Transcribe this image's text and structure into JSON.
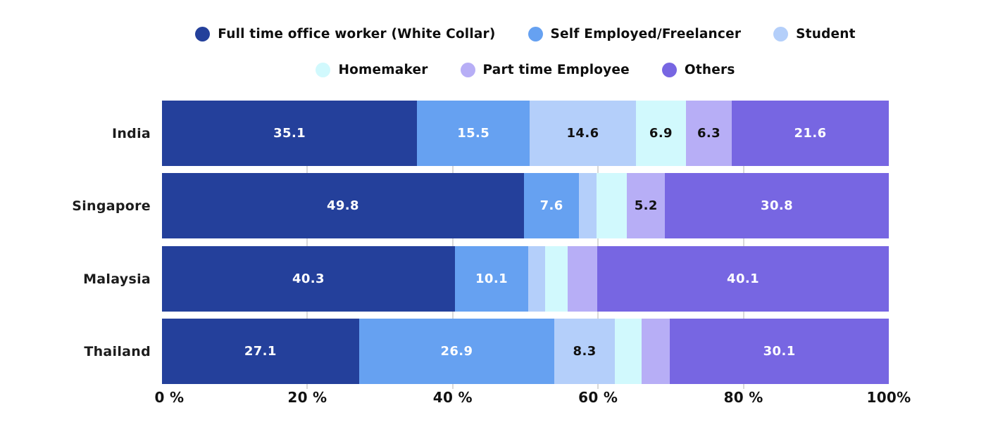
{
  "chart_data": {
    "type": "bar",
    "orientation": "horizontal",
    "stacked": true,
    "unit": "%",
    "title": "",
    "xlabel": "",
    "ylabel": "",
    "xlim": [
      0,
      100
    ],
    "grid": true,
    "gridlines_at": [
      20,
      40,
      60,
      80
    ],
    "label_min_value": 5,
    "legend_position": "top",
    "legend_rows": [
      [
        0,
        1,
        2
      ],
      [
        3,
        4,
        5
      ]
    ],
    "categories": [
      "India",
      "Singapore",
      "Malaysia",
      "Thailand"
    ],
    "series": [
      {
        "name": "Full time office worker (White Collar)",
        "color": "#24409b",
        "label_color": "#ffffff",
        "values": [
          35.1,
          49.8,
          40.3,
          27.1
        ]
      },
      {
        "name": "Self Employed/Freelancer",
        "color": "#66a1f1",
        "label_color": "#ffffff",
        "values": [
          15.5,
          7.6,
          10.1,
          26.9
        ]
      },
      {
        "name": "Student",
        "color": "#b4cffa",
        "label_color": "#111111",
        "values": [
          14.6,
          2.4,
          2.3,
          8.3
        ]
      },
      {
        "name": "Homemaker",
        "color": "#d1f9fd",
        "label_color": "#111111",
        "values": [
          6.9,
          4.2,
          3.1,
          3.7
        ]
      },
      {
        "name": "Part time Employee",
        "color": "#b7aef6",
        "label_color": "#111111",
        "values": [
          6.3,
          5.2,
          4.1,
          3.9
        ]
      },
      {
        "name": "Others",
        "color": "#7766e2",
        "label_color": "#ffffff",
        "values": [
          21.6,
          30.8,
          40.1,
          30.1
        ]
      }
    ],
    "x_ticks": [
      {
        "label": "0 %",
        "value": 0
      },
      {
        "label": "20 %",
        "value": 20
      },
      {
        "label": "40 %",
        "value": 40
      },
      {
        "label": "60 %",
        "value": 60
      },
      {
        "label": "80 %",
        "value": 80
      },
      {
        "label": "100%",
        "value": 100
      }
    ]
  },
  "styles": {
    "background": "#ffffff",
    "gridline_color": "#d9d9d9",
    "legend_text_color": "#0d0d0d",
    "axis_text_color": "#111111",
    "category_text_color": "#1c1c1c"
  }
}
